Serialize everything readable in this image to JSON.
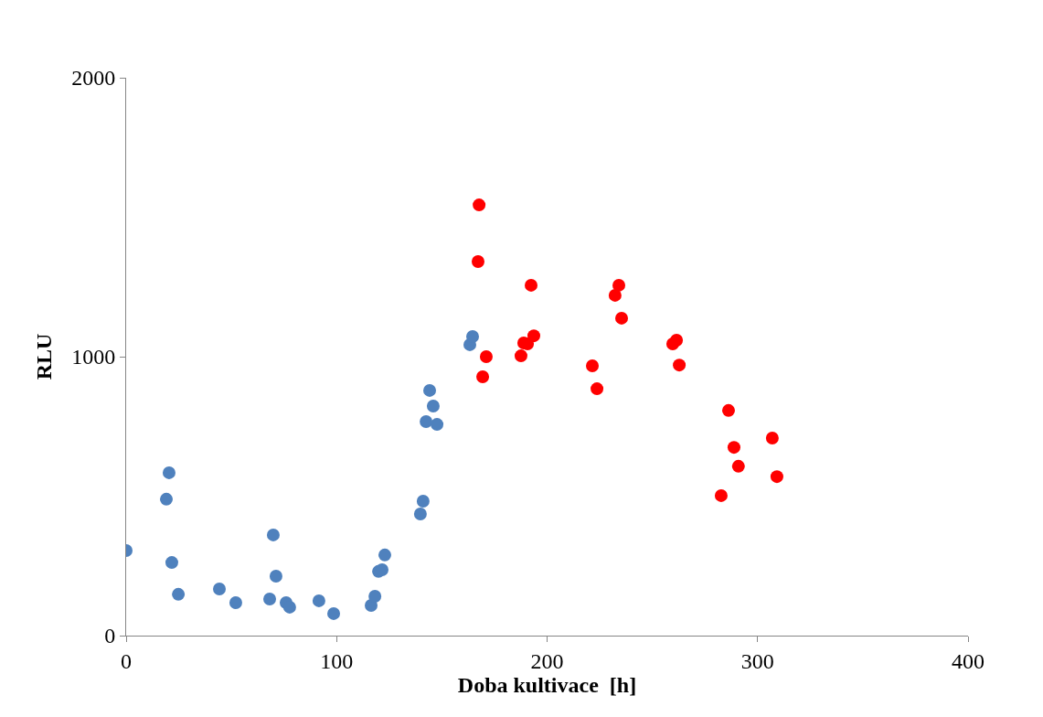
{
  "chart_data": {
    "type": "scatter",
    "xlabel": "Doba kultivace  [h]",
    "ylabel": "RLU",
    "xlim": [
      0,
      400
    ],
    "ylim": [
      0,
      2000
    ],
    "xticks": [
      0,
      100,
      200,
      300,
      400
    ],
    "yticks": [
      0,
      1000,
      2000
    ],
    "marker": "circle",
    "series": [
      {
        "color": "#4f81bd",
        "x": [
          0,
          19.1,
          20.4,
          21.7,
          24.8,
          44.3,
          52.1,
          68.2,
          69.9,
          71.2,
          76,
          77.7,
          91.6,
          98.6,
          116.4,
          118.2,
          119.9,
          121.6,
          122.9,
          139.8,
          141.1,
          142.5,
          144.2,
          145.9,
          147.7,
          163.3,
          164.6
        ],
        "values": [
          305,
          489,
          584,
          262,
          148,
          167,
          118,
          131,
          361,
          213,
          118,
          102,
          125,
          79,
          108,
          141,
          230,
          236,
          289,
          436,
          482,
          767,
          879,
          823,
          757,
          1043,
          1072
        ]
      },
      {
        "color": "#ff0000",
        "x": [
          167.2,
          167.7,
          169.4,
          171.1,
          187.6,
          188.9,
          190.7,
          192.4,
          193.7,
          221.5,
          223.7,
          232.3,
          234.1,
          235.4,
          259.7,
          261.5,
          262.8,
          282.7,
          286.2,
          288.8,
          290.9,
          307,
          309.2
        ],
        "values": [
          1341,
          1544,
          928,
          1000,
          1003,
          1049,
          1046,
          1256,
          1075,
          967,
          885,
          1220,
          1256,
          1138,
          1046,
          1059,
          970,
          502,
          807,
          675,
          607,
          708,
          570
        ]
      }
    ]
  }
}
